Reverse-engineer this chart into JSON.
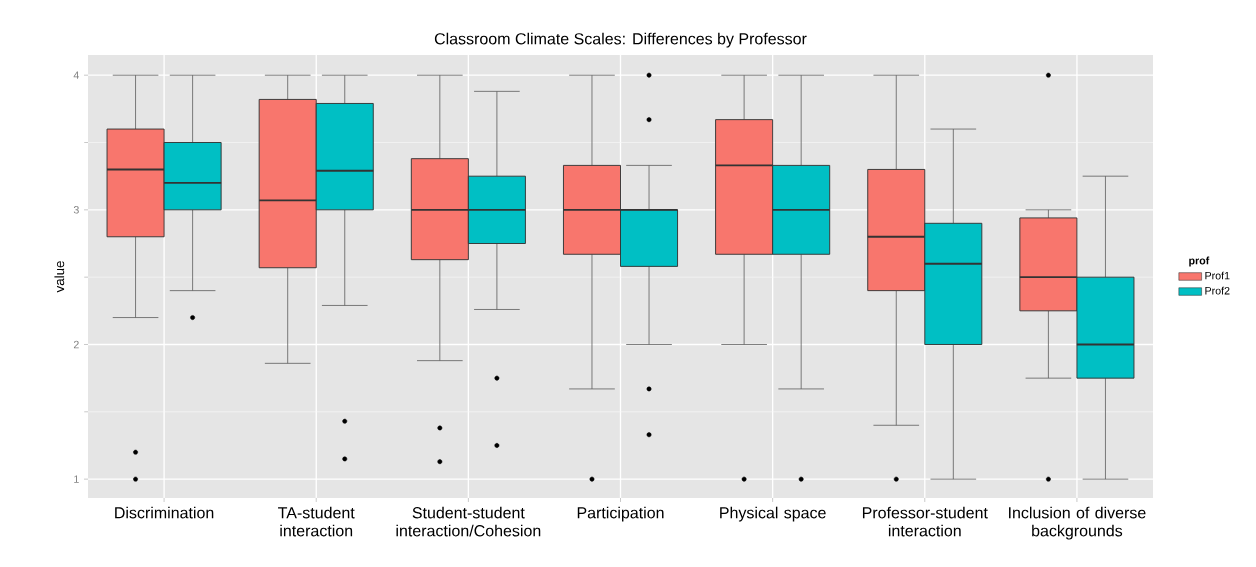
{
  "chart_data": {
    "type": "box",
    "title": "Classroom Climate Scales: Differences by Professor",
    "ylabel": "value",
    "legend_title": "prof",
    "categories": [
      "Discrimination",
      "TA-student interaction",
      "Student-student interaction/Cohesion",
      "Participation",
      "Physical space",
      "Professor-student interaction",
      "Inclusion of diverse backgrounds"
    ],
    "ylim": [
      0.86,
      4.15
    ],
    "yticks": [
      1,
      2,
      3,
      4
    ],
    "grid": true,
    "legend": "right",
    "series": [
      {
        "name": "Prof1",
        "color": "#f8766d",
        "boxes": [
          {
            "low": 2.2,
            "q1": 2.8,
            "median": 3.3,
            "q3": 3.6,
            "high": 4,
            "outliers": [
              1.2,
              1.0
            ]
          },
          {
            "low": 1.86,
            "q1": 2.57,
            "median": 3.07,
            "q3": 3.82,
            "high": 4
          },
          {
            "low": 1.88,
            "q1": 2.63,
            "median": 3.0,
            "q3": 3.38,
            "high": 4,
            "outliers": [
              1.38,
              1.13
            ]
          },
          {
            "low": 1.67,
            "q1": 2.67,
            "median": 3.0,
            "q3": 3.33,
            "high": 4,
            "outliers": [
              1.0
            ]
          },
          {
            "low": 2.0,
            "q1": 2.67,
            "median": 3.33,
            "q3": 3.67,
            "high": 4,
            "outliers": [
              1.0
            ]
          },
          {
            "low": 1.4,
            "q1": 2.4,
            "median": 2.8,
            "q3": 3.3,
            "high": 4,
            "outliers": [
              1.0
            ]
          },
          {
            "low": 1.75,
            "q1": 2.25,
            "median": 2.5,
            "q3": 2.94,
            "high": 3.0,
            "outliers": [
              4.0,
              1.0
            ]
          }
        ]
      },
      {
        "name": "Prof2",
        "color": "#00bfc4",
        "boxes": [
          {
            "low": 2.4,
            "q1": 3.0,
            "median": 3.2,
            "q3": 3.5,
            "high": 4,
            "outliers": [
              2.2
            ]
          },
          {
            "low": 2.29,
            "q1": 3.0,
            "median": 3.29,
            "q3": 3.79,
            "high": 4,
            "outliers": [
              1.43,
              1.15
            ]
          },
          {
            "low": 2.26,
            "q1": 2.75,
            "median": 3.0,
            "q3": 3.25,
            "high": 3.88,
            "outliers": [
              1.75,
              1.25
            ]
          },
          {
            "low": 2.0,
            "q1": 2.58,
            "median": 3.0,
            "q3": 3.0,
            "high": 3.33,
            "outliers": [
              4.0,
              3.67,
              1.67,
              1.33
            ]
          },
          {
            "low": 1.67,
            "q1": 2.67,
            "median": 3.0,
            "q3": 3.33,
            "high": 4,
            "outliers": [
              1.0
            ]
          },
          {
            "low": 1.0,
            "q1": 2.0,
            "median": 2.6,
            "q3": 2.9,
            "high": 3.6
          },
          {
            "low": 1.0,
            "q1": 1.75,
            "median": 2.0,
            "q3": 2.5,
            "high": 3.25
          }
        ]
      }
    ]
  }
}
